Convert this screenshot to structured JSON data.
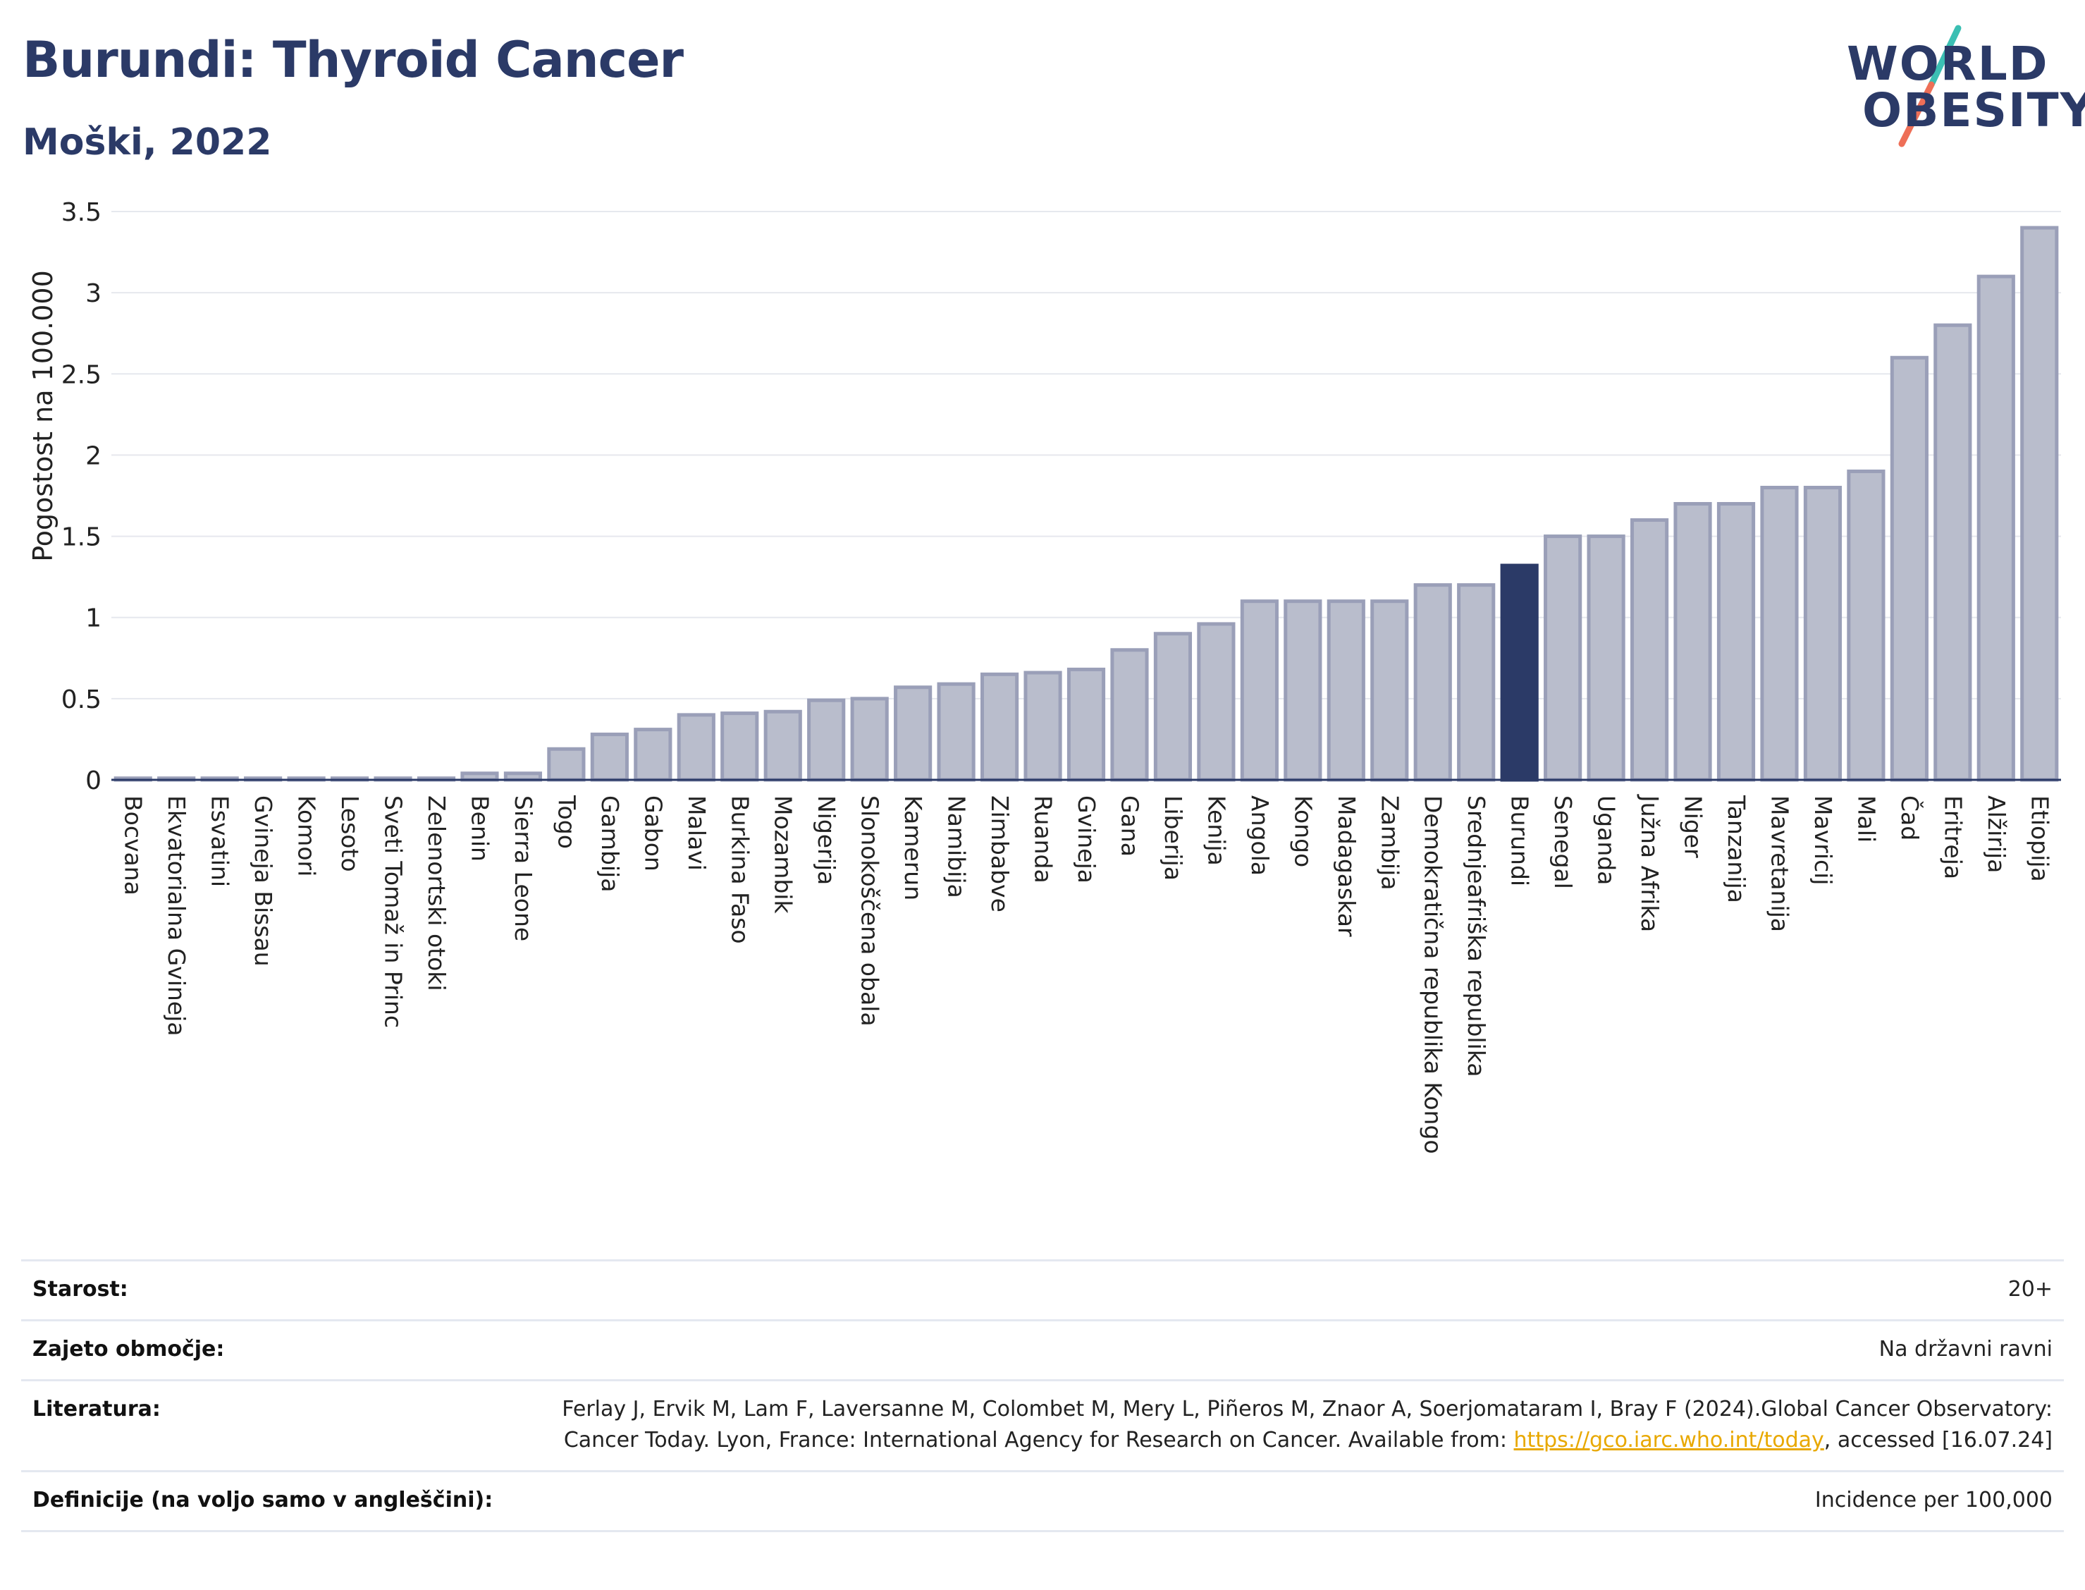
{
  "header": {
    "title": "Burundi: Thyroid Cancer",
    "subtitle": "Moški, 2022"
  },
  "logo": {
    "line1": "WORLD",
    "line2": "OBESITY"
  },
  "colors": {
    "bar": "#b9bdcc",
    "bar_stroke": "#9a9fb8",
    "highlight": "#2b3a67",
    "title": "#2b3a67",
    "grid": "#e6e8ee"
  },
  "chart_data": {
    "type": "bar",
    "ylabel": "Pogostost na 100.000",
    "xlabel": "",
    "ylim": [
      0,
      3.5
    ],
    "yticks": [
      0,
      0.5,
      1,
      1.5,
      2,
      2.5,
      3,
      3.5
    ],
    "ytick_labels": [
      "0",
      "0.5",
      "1",
      "1.5",
      "2",
      "2.5",
      "3",
      "3.5"
    ],
    "grid": true,
    "highlight": "Burundi",
    "categories": [
      "Bocvana",
      "Ekvatorialna Gvineja",
      "Esvatini",
      "Gvineja Bissau",
      "Komori",
      "Lesoto",
      "Sveti Tomaž in Princ",
      "Zelenortski otoki",
      "Benin",
      "Sierra Leone",
      "Togo",
      "Gambija",
      "Gabon",
      "Malavi",
      "Burkina Faso",
      "Mozambik",
      "Nigerija",
      "Slonokoščena obala",
      "Kamerun",
      "Namibija",
      "Zimbabve",
      "Ruanda",
      "Gvineja",
      "Gana",
      "Liberija",
      "Kenija",
      "Angola",
      "Kongo",
      "Madagaskar",
      "Zambija",
      "Demokratična republika Kongo",
      "Srednjeafriška republika",
      "Burundi",
      "Senegal",
      "Uganda",
      "Južna Afrika",
      "Niger",
      "Tanzanija",
      "Mavretanija",
      "Mavricij",
      "Mali",
      "Čad",
      "Eritreja",
      "Alžirija",
      "Etiopija"
    ],
    "values": [
      0.01,
      0.01,
      0.01,
      0.01,
      0.01,
      0.01,
      0.01,
      0.01,
      0.04,
      0.04,
      0.19,
      0.28,
      0.31,
      0.4,
      0.41,
      0.42,
      0.49,
      0.5,
      0.57,
      0.59,
      0.65,
      0.66,
      0.68,
      0.8,
      0.9,
      0.96,
      1.1,
      1.1,
      1.1,
      1.1,
      1.2,
      1.2,
      1.32,
      1.5,
      1.5,
      1.6,
      1.7,
      1.7,
      1.8,
      1.8,
      1.9,
      2.6,
      2.8,
      3.1,
      3.4
    ]
  },
  "info": {
    "age_label": "Starost:",
    "age_value": "20+",
    "coverage_label": "Zajeto območje:",
    "coverage_value": "Na državni ravni",
    "literature_label": "Literatura:",
    "literature_text": "Ferlay J, Ervik M, Lam F, Laversanne M, Colombet M, Mery L, Piñeros M, Znaor A, Soerjomataram I, Bray F (2024).Global Cancer Observatory: Cancer Today. Lyon, France: International Agency for Research on Cancer. Available from:",
    "literature_link": "https://gco.iarc.who.int/today",
    "literature_suffix": ", accessed [16.07.24]",
    "definitions_label": "Definicije (na voljo samo v angleščini):",
    "definitions_value": "Incidence per 100,000"
  }
}
